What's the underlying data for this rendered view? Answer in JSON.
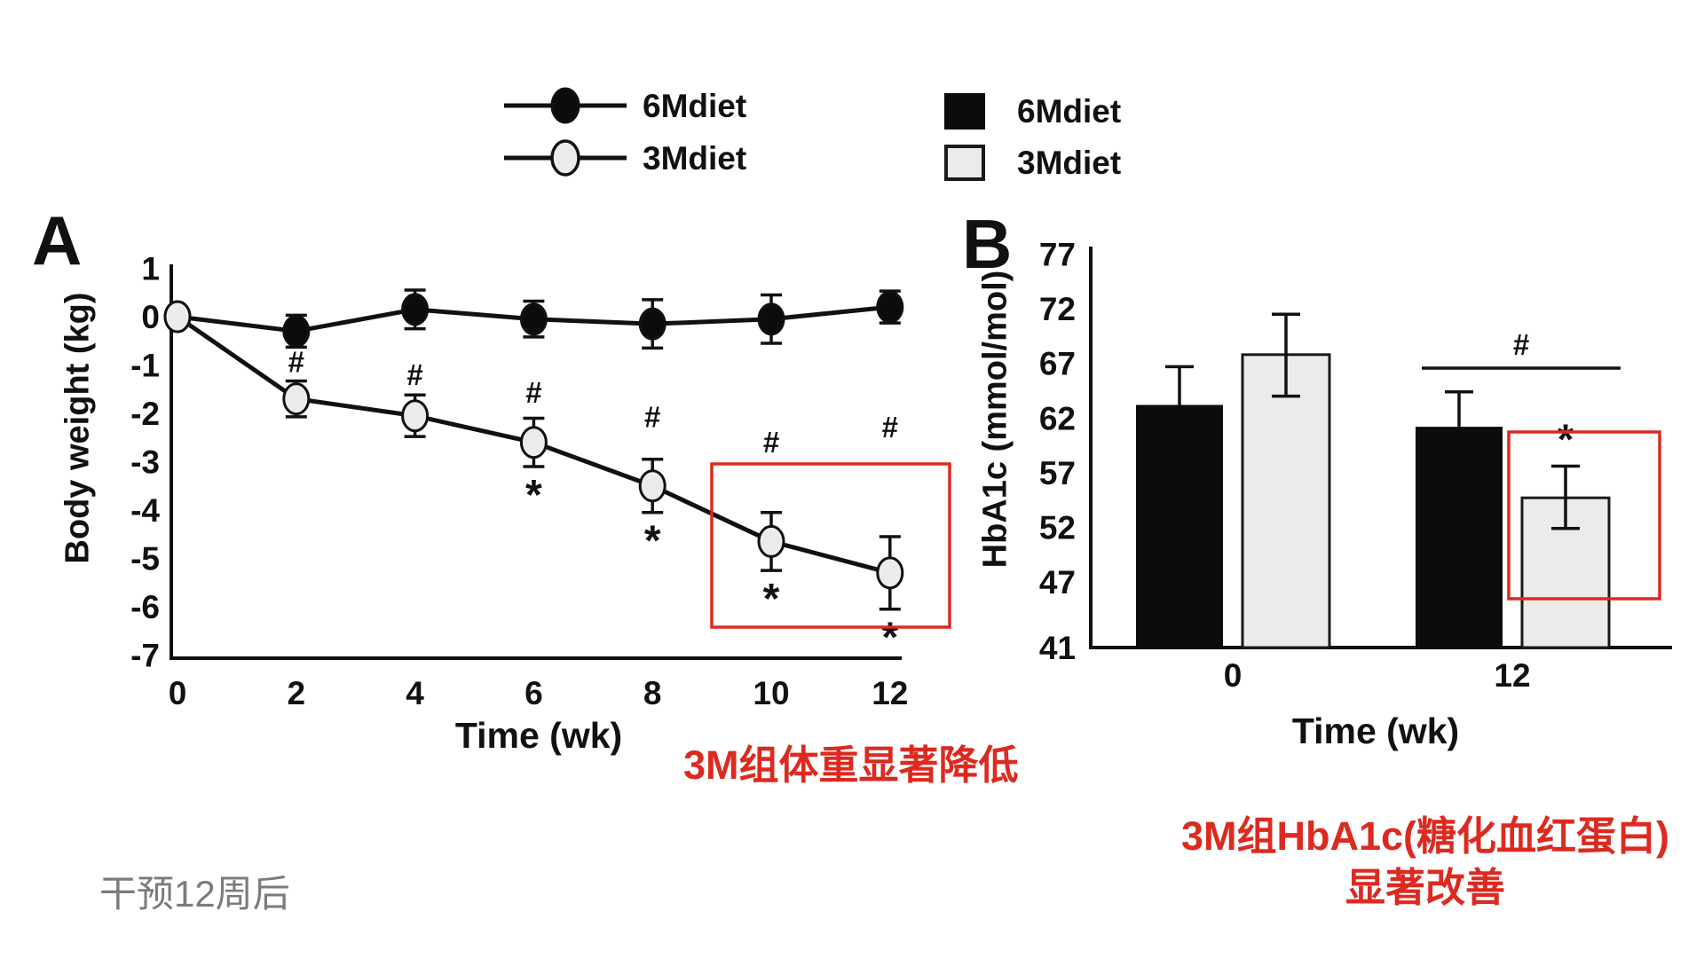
{
  "colors": {
    "accent_red": "#dc2a20",
    "ink": "#111111",
    "marker_light": "#ebebeb",
    "gray_text": "#7b7b7b"
  },
  "legend_line": {
    "items": [
      {
        "label": "6Mdiet",
        "marker": "filled-ellipse"
      },
      {
        "label": "3Mdiet",
        "marker": "open-ellipse"
      }
    ]
  },
  "legend_bar": {
    "items": [
      {
        "label": "6Mdiet",
        "swatch": "black"
      },
      {
        "label": "3Mdiet",
        "swatch": "light"
      }
    ]
  },
  "panel_a": {
    "label": "A",
    "ylabel": "Body weight (kg)",
    "xlabel": "Time (wk)"
  },
  "panel_b": {
    "label": "B",
    "ylabel": "HbA1c (mmol/mol)",
    "xlabel": "Time (wk)"
  },
  "annotations": {
    "panel_a_note": "3M组体重显著降低",
    "panel_b_note_line1": "3M组HbA1c(糖化血红蛋白)",
    "panel_b_note_line2": "显著改善",
    "footer_note": "干预12周后"
  },
  "chart_data": [
    {
      "type": "line",
      "title": "Panel A - Body weight change over intervention",
      "xlabel": "Time (wk)",
      "ylabel": "Body weight (kg)",
      "x": [
        0,
        2,
        4,
        6,
        8,
        10,
        12
      ],
      "xticks": [
        "0",
        "2",
        "4",
        "6",
        "8",
        "10",
        "12"
      ],
      "yticks": [
        1,
        0,
        -1,
        -2,
        -3,
        -4,
        -5,
        -6,
        -7
      ],
      "ylim": [
        -7,
        1
      ],
      "grid": false,
      "legend_position": "top",
      "series": [
        {
          "name": "6Mdiet",
          "marker": "filled",
          "values": [
            0,
            -0.3,
            0.15,
            -0.05,
            -0.15,
            -0.05,
            0.2
          ],
          "errors": [
            0,
            0.33,
            0.4,
            0.37,
            0.5,
            0.5,
            0.33
          ]
        },
        {
          "name": "3Mdiet",
          "marker": "open",
          "values": [
            0,
            -1.7,
            -2.05,
            -2.6,
            -3.5,
            -4.65,
            -5.3
          ],
          "errors": [
            0,
            0.37,
            0.43,
            0.5,
            0.55,
            0.6,
            0.75
          ]
        }
      ],
      "significance": {
        "hash_weeks": [
          2,
          4,
          6,
          8,
          10,
          12
        ],
        "star_weeks": [
          6,
          8,
          10,
          12
        ]
      },
      "highlight_box_weeks": [
        10,
        12
      ]
    },
    {
      "type": "bar",
      "title": "Panel B - HbA1c at week 0 and 12",
      "xlabel": "Time (wk)",
      "ylabel": "HbA1c (mmol/mol)",
      "categories": [
        "0",
        "12"
      ],
      "yticks": [
        77,
        72,
        67,
        62,
        57,
        52,
        47,
        41
      ],
      "ylim": [
        41,
        77
      ],
      "grid": false,
      "legend_position": "top",
      "series": [
        {
          "name": "6Mdiet",
          "fill": "black",
          "values": [
            63.2,
            61.2
          ],
          "errors_up": [
            3.5,
            3.2
          ],
          "errors_down": [
            0,
            0
          ]
        },
        {
          "name": "3Mdiet",
          "fill": "light",
          "values": [
            67.8,
            54.7
          ],
          "errors_up": [
            3.7,
            2.9
          ],
          "errors_down": [
            3.8,
            2.8
          ]
        }
      ],
      "significance": {
        "hash_line_category": "12",
        "hash_symbol": "#",
        "star_symbol": "*",
        "star_series": "3Mdiet",
        "star_category": "12"
      },
      "highlight": {
        "series": "3Mdiet",
        "category": "12"
      }
    }
  ]
}
